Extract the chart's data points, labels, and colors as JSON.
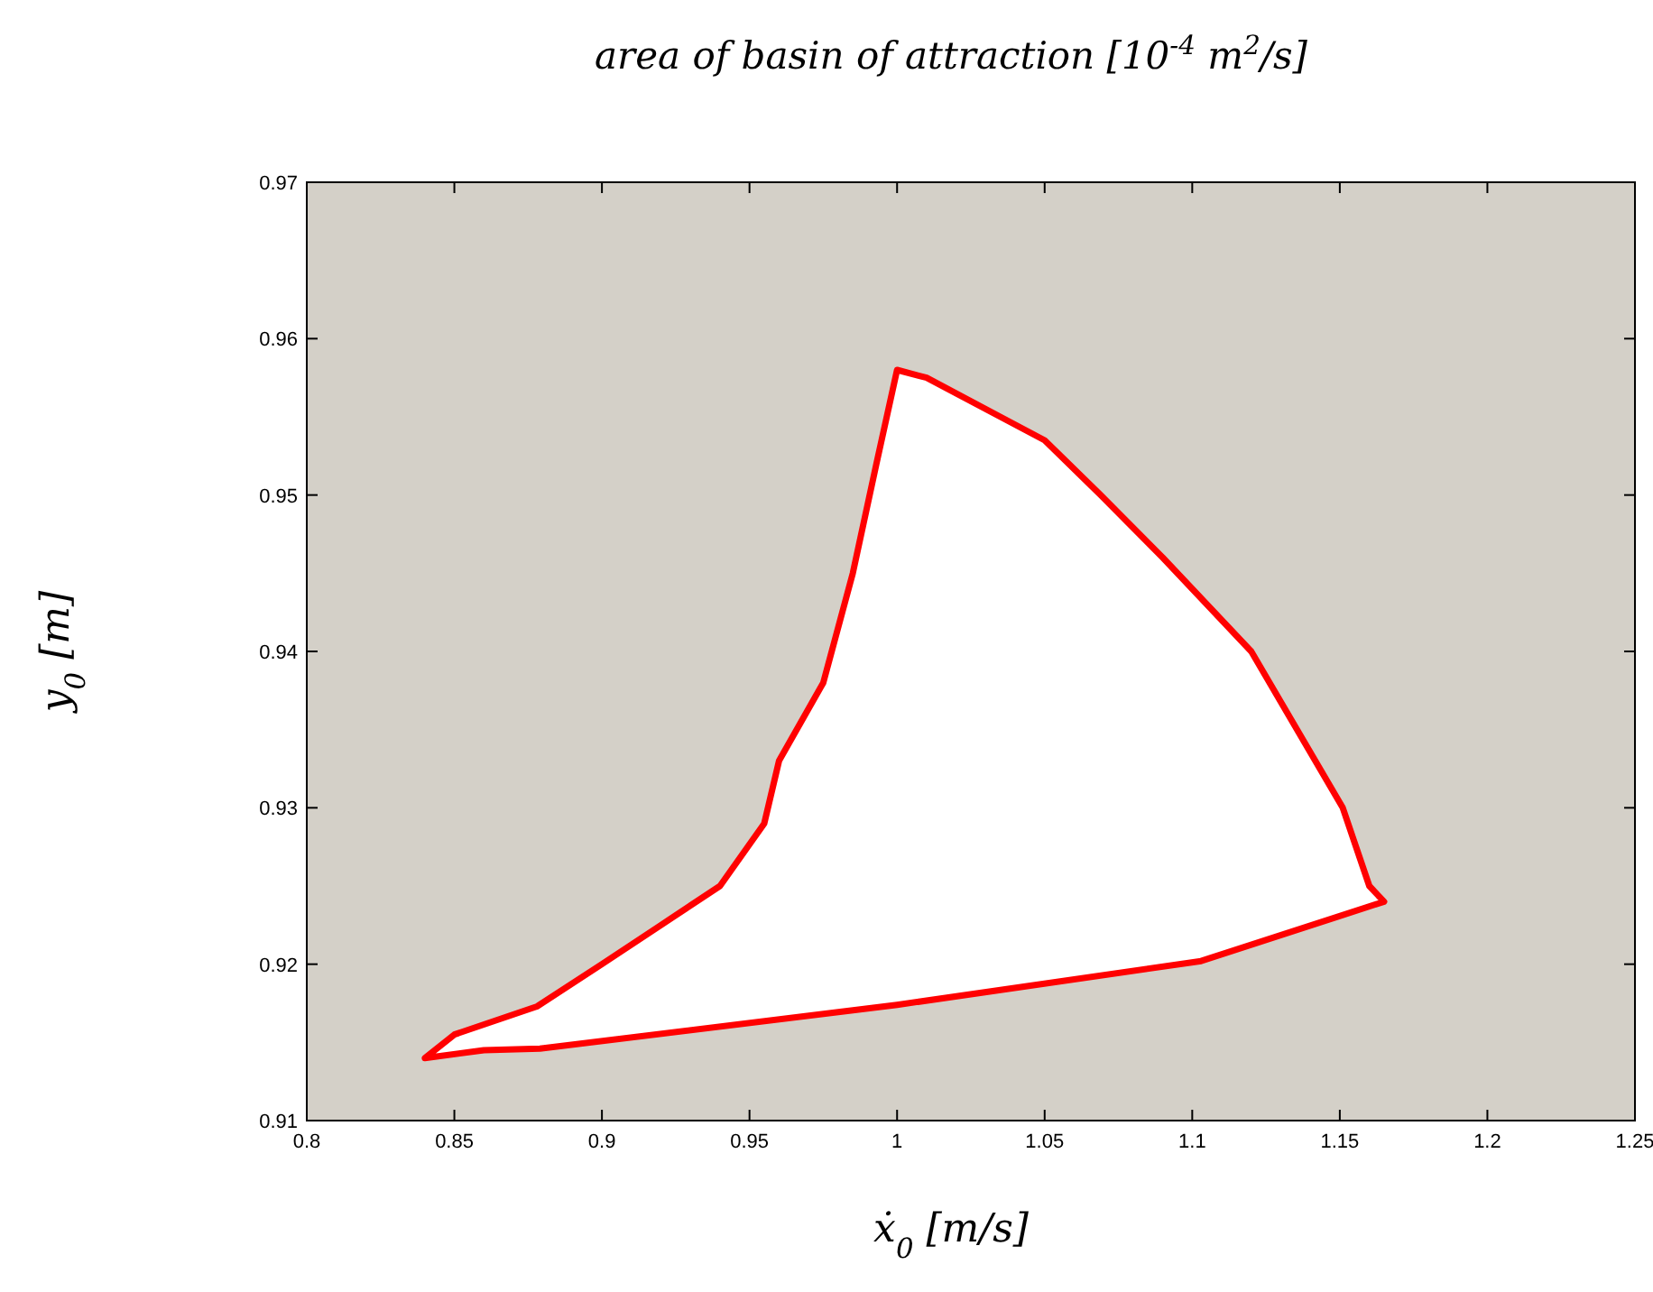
{
  "chart_data": {
    "type": "area",
    "title": "area of basin of attraction [10$^{-4}$ m$^{2}$/s]",
    "xlabel": "ẋ$_{0}$ [m/s]",
    "ylabel": "y$_{0}$  [m]",
    "xlim": [
      0.8,
      1.25
    ],
    "xticks": [
      0.8,
      0.85,
      0.9,
      0.95,
      1,
      1.05,
      1.1,
      1.15,
      1.2,
      1.25
    ],
    "ylim": [
      0.91,
      0.97
    ],
    "yticks": [
      0.91,
      0.92,
      0.93,
      0.94,
      0.95,
      0.96,
      0.97
    ],
    "grid": false,
    "series": [
      {
        "color": "#ff0000",
        "x": [
          0.84,
          0.85,
          0.878,
          0.9,
          0.92,
          0.94,
          0.955,
          0.96,
          0.975,
          0.985,
          0.993,
          1.0,
          1.01,
          1.035,
          1.05,
          1.069,
          1.09,
          1.12,
          1.151,
          1.16,
          1.165,
          1.103,
          1.0,
          0.879,
          0.86,
          0.84
        ],
        "values": [
          0.914,
          0.9155,
          0.9173,
          0.92,
          0.9225,
          0.925,
          0.929,
          0.933,
          0.938,
          0.945,
          0.952,
          0.958,
          0.9575,
          0.955,
          0.9535,
          0.95,
          0.946,
          0.94,
          0.93,
          0.925,
          0.924,
          0.9202,
          0.9174,
          0.9146,
          0.9145,
          0.914
        ]
      }
    ]
  }
}
